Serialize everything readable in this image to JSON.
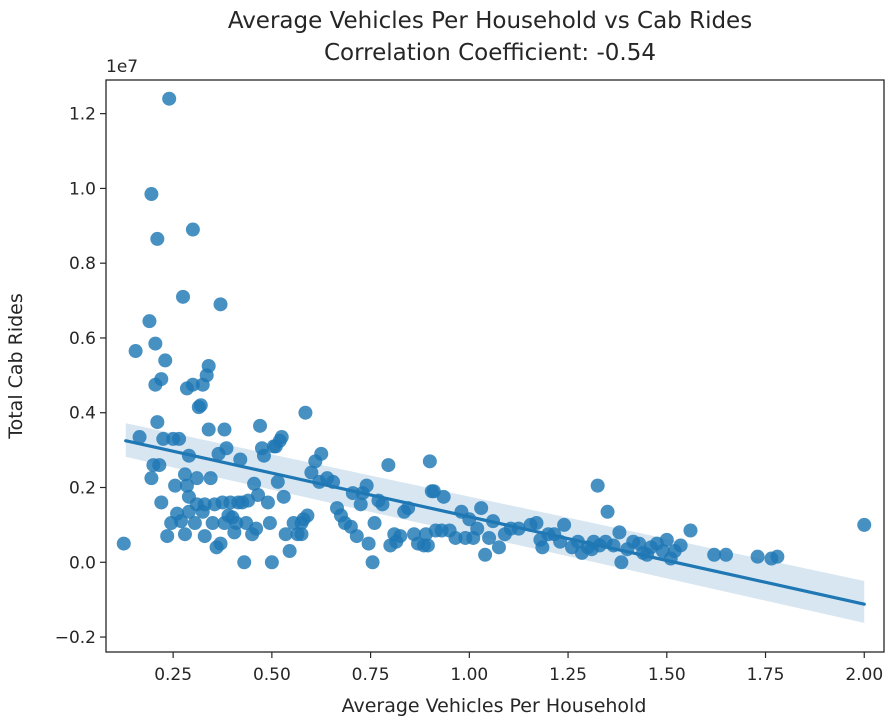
{
  "chart_data": {
    "type": "scatter",
    "title": "Average Vehicles Per Household vs Cab Rides",
    "subtitle": "Correlation Coefficient: -0.54",
    "xlabel": "Average Vehicles Per Household",
    "ylabel": "Total Cab Rides",
    "y_offset_label": "1e7",
    "xlim": [
      0.08,
      2.05
    ],
    "ylim": [
      -0.24,
      1.29
    ],
    "x_ticks": [
      0.25,
      0.5,
      0.75,
      1.0,
      1.25,
      1.5,
      1.75,
      2.0
    ],
    "x_tick_labels": [
      "0.25",
      "0.50",
      "0.75",
      "1.00",
      "1.25",
      "1.50",
      "1.75",
      "2.00"
    ],
    "y_ticks": [
      -0.2,
      0.0,
      0.2,
      0.4,
      0.6,
      0.8,
      1.0,
      1.2
    ],
    "y_tick_labels": [
      "−0.2",
      "0.0",
      "0.2",
      "0.4",
      "0.6",
      "0.8",
      "1.0",
      "1.2"
    ],
    "grid": false,
    "point_color": "#1f77b4",
    "regression": {
      "x": [
        0.13,
        2.0
      ],
      "y": [
        0.325,
        -0.112
      ],
      "ci_upper": [
        0.372,
        -0.05
      ],
      "ci_lower": [
        0.282,
        -0.162
      ]
    },
    "points": [
      [
        0.125,
        0.05
      ],
      [
        0.155,
        0.565
      ],
      [
        0.165,
        0.335
      ],
      [
        0.19,
        0.645
      ],
      [
        0.195,
        0.985
      ],
      [
        0.195,
        0.225
      ],
      [
        0.2,
        0.26
      ],
      [
        0.205,
        0.585
      ],
      [
        0.205,
        0.475
      ],
      [
        0.21,
        0.865
      ],
      [
        0.21,
        0.375
      ],
      [
        0.215,
        0.26
      ],
      [
        0.22,
        0.49
      ],
      [
        0.22,
        0.16
      ],
      [
        0.225,
        0.33
      ],
      [
        0.23,
        0.54
      ],
      [
        0.235,
        0.07
      ],
      [
        0.24,
        1.24
      ],
      [
        0.245,
        0.105
      ],
      [
        0.25,
        0.33
      ],
      [
        0.255,
        0.205
      ],
      [
        0.26,
        0.13
      ],
      [
        0.265,
        0.33
      ],
      [
        0.27,
        0.11
      ],
      [
        0.275,
        0.71
      ],
      [
        0.28,
        0.235
      ],
      [
        0.28,
        0.075
      ],
      [
        0.285,
        0.205
      ],
      [
        0.285,
        0.465
      ],
      [
        0.29,
        0.285
      ],
      [
        0.29,
        0.175
      ],
      [
        0.29,
        0.135
      ],
      [
        0.3,
        0.89
      ],
      [
        0.3,
        0.475
      ],
      [
        0.305,
        0.105
      ],
      [
        0.31,
        0.225
      ],
      [
        0.31,
        0.155
      ],
      [
        0.315,
        0.415
      ],
      [
        0.32,
        0.42
      ],
      [
        0.325,
        0.475
      ],
      [
        0.325,
        0.135
      ],
      [
        0.33,
        0.155
      ],
      [
        0.33,
        0.07
      ],
      [
        0.335,
        0.5
      ],
      [
        0.34,
        0.525
      ],
      [
        0.34,
        0.355
      ],
      [
        0.345,
        0.225
      ],
      [
        0.35,
        0.105
      ],
      [
        0.355,
        0.155
      ],
      [
        0.36,
        0.04
      ],
      [
        0.365,
        0.29
      ],
      [
        0.37,
        0.05
      ],
      [
        0.37,
        0.69
      ],
      [
        0.375,
        0.16
      ],
      [
        0.38,
        0.355
      ],
      [
        0.38,
        0.105
      ],
      [
        0.385,
        0.305
      ],
      [
        0.39,
        0.125
      ],
      [
        0.395,
        0.16
      ],
      [
        0.4,
        0.12
      ],
      [
        0.405,
        0.08
      ],
      [
        0.41,
        0.105
      ],
      [
        0.415,
        0.16
      ],
      [
        0.42,
        0.275
      ],
      [
        0.425,
        0.16
      ],
      [
        0.43,
        0.0
      ],
      [
        0.435,
        0.105
      ],
      [
        0.44,
        0.165
      ],
      [
        0.45,
        0.075
      ],
      [
        0.455,
        0.21
      ],
      [
        0.46,
        0.09
      ],
      [
        0.465,
        0.18
      ],
      [
        0.47,
        0.365
      ],
      [
        0.475,
        0.305
      ],
      [
        0.48,
        0.285
      ],
      [
        0.49,
        0.16
      ],
      [
        0.495,
        0.105
      ],
      [
        0.5,
        0.0
      ],
      [
        0.505,
        0.31
      ],
      [
        0.51,
        0.31
      ],
      [
        0.515,
        0.215
      ],
      [
        0.52,
        0.325
      ],
      [
        0.525,
        0.335
      ],
      [
        0.53,
        0.175
      ],
      [
        0.535,
        0.075
      ],
      [
        0.545,
        0.03
      ],
      [
        0.555,
        0.105
      ],
      [
        0.565,
        0.075
      ],
      [
        0.575,
        0.075
      ],
      [
        0.575,
        0.105
      ],
      [
        0.58,
        0.115
      ],
      [
        0.585,
        0.4
      ],
      [
        0.59,
        0.125
      ],
      [
        0.6,
        0.24
      ],
      [
        0.61,
        0.27
      ],
      [
        0.62,
        0.215
      ],
      [
        0.625,
        0.29
      ],
      [
        0.64,
        0.225
      ],
      [
        0.655,
        0.215
      ],
      [
        0.665,
        0.145
      ],
      [
        0.675,
        0.125
      ],
      [
        0.685,
        0.105
      ],
      [
        0.7,
        0.095
      ],
      [
        0.705,
        0.185
      ],
      [
        0.715,
        0.07
      ],
      [
        0.725,
        0.155
      ],
      [
        0.73,
        0.185
      ],
      [
        0.74,
        0.205
      ],
      [
        0.745,
        0.05
      ],
      [
        0.755,
        0.0
      ],
      [
        0.76,
        0.105
      ],
      [
        0.77,
        0.165
      ],
      [
        0.78,
        0.155
      ],
      [
        0.795,
        0.26
      ],
      [
        0.8,
        0.045
      ],
      [
        0.81,
        0.075
      ],
      [
        0.815,
        0.055
      ],
      [
        0.825,
        0.07
      ],
      [
        0.835,
        0.135
      ],
      [
        0.845,
        0.145
      ],
      [
        0.86,
        0.075
      ],
      [
        0.87,
        0.05
      ],
      [
        0.885,
        0.045
      ],
      [
        0.89,
        0.075
      ],
      [
        0.895,
        0.045
      ],
      [
        0.9,
        0.27
      ],
      [
        0.905,
        0.19
      ],
      [
        0.91,
        0.19
      ],
      [
        0.915,
        0.085
      ],
      [
        0.93,
        0.085
      ],
      [
        0.935,
        0.175
      ],
      [
        0.95,
        0.085
      ],
      [
        0.965,
        0.065
      ],
      [
        0.98,
        0.135
      ],
      [
        0.99,
        0.065
      ],
      [
        1.0,
        0.115
      ],
      [
        1.01,
        0.065
      ],
      [
        1.02,
        0.09
      ],
      [
        1.03,
        0.145
      ],
      [
        1.04,
        0.02
      ],
      [
        1.05,
        0.065
      ],
      [
        1.06,
        0.11
      ],
      [
        1.075,
        0.04
      ],
      [
        1.09,
        0.075
      ],
      [
        1.105,
        0.09
      ],
      [
        1.125,
        0.09
      ],
      [
        1.155,
        0.1
      ],
      [
        1.17,
        0.105
      ],
      [
        1.18,
        0.06
      ],
      [
        1.185,
        0.04
      ],
      [
        1.2,
        0.075
      ],
      [
        1.215,
        0.075
      ],
      [
        1.23,
        0.055
      ],
      [
        1.24,
        0.1
      ],
      [
        1.26,
        0.04
      ],
      [
        1.275,
        0.055
      ],
      [
        1.285,
        0.025
      ],
      [
        1.3,
        0.04
      ],
      [
        1.31,
        0.035
      ],
      [
        1.315,
        0.055
      ],
      [
        1.325,
        0.205
      ],
      [
        1.33,
        0.045
      ],
      [
        1.345,
        0.055
      ],
      [
        1.35,
        0.135
      ],
      [
        1.365,
        0.045
      ],
      [
        1.38,
        0.08
      ],
      [
        1.385,
        0.0
      ],
      [
        1.4,
        0.035
      ],
      [
        1.415,
        0.055
      ],
      [
        1.43,
        0.05
      ],
      [
        1.44,
        0.025
      ],
      [
        1.45,
        0.02
      ],
      [
        1.46,
        0.04
      ],
      [
        1.475,
        0.05
      ],
      [
        1.49,
        0.03
      ],
      [
        1.5,
        0.06
      ],
      [
        1.51,
        0.01
      ],
      [
        1.52,
        0.03
      ],
      [
        1.535,
        0.045
      ],
      [
        1.56,
        0.085
      ],
      [
        1.62,
        0.02
      ],
      [
        1.65,
        0.02
      ],
      [
        1.73,
        0.015
      ],
      [
        1.765,
        0.01
      ],
      [
        1.78,
        0.015
      ],
      [
        2.0,
        0.1
      ]
    ]
  }
}
